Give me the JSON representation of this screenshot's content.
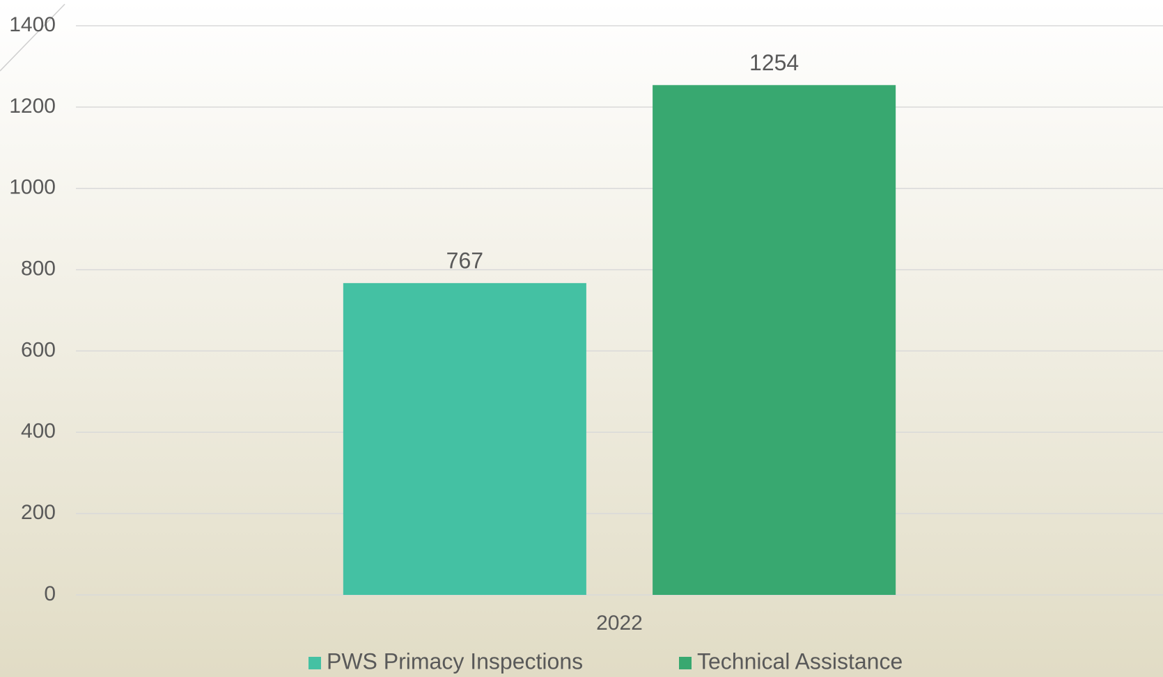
{
  "chart_data": {
    "type": "bar",
    "categories": [
      "2022"
    ],
    "series": [
      {
        "name": "PWS Primacy Inspections",
        "color": "#44c1a3",
        "values": [
          767
        ]
      },
      {
        "name": "Technical Assistance",
        "color": "#38a870",
        "values": [
          1254
        ]
      }
    ],
    "ylim": [
      0,
      1400
    ],
    "yticks": [
      0,
      200,
      400,
      600,
      800,
      1000,
      1200,
      1400
    ],
    "grid": true,
    "legend": "bottom"
  }
}
